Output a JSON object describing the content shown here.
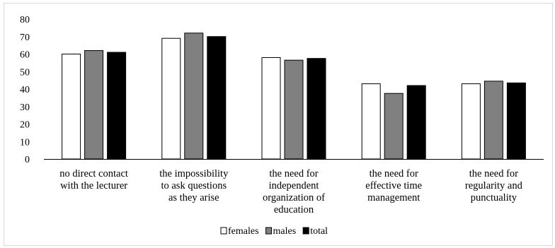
{
  "chart_data": {
    "type": "bar",
    "categories": [
      [
        "no direct contact",
        "with the lecturer"
      ],
      [
        "the impossibility",
        "to ask questions",
        "as they arise"
      ],
      [
        "the need for",
        "independent",
        "organization of",
        "education"
      ],
      [
        "the need for",
        "effective time",
        "management"
      ],
      [
        "the need for",
        "regularity and",
        "punctuality"
      ]
    ],
    "series": [
      {
        "name": "females",
        "values": [
          60,
          69,
          58,
          43,
          43
        ],
        "color": "#ffffff"
      },
      {
        "name": "males",
        "values": [
          62,
          72,
          56.5,
          37.5,
          44.5
        ],
        "color": "#808080"
      },
      {
        "name": "total",
        "values": [
          61,
          70,
          57.5,
          42,
          43.5
        ],
        "color": "#000000"
      }
    ],
    "ylim": [
      0,
      80
    ],
    "yticks": [
      0,
      10,
      20,
      30,
      40,
      50,
      60,
      70,
      80
    ],
    "grid": false,
    "legend": "bottom-center",
    "title": "",
    "xlabel": "",
    "ylabel": ""
  }
}
